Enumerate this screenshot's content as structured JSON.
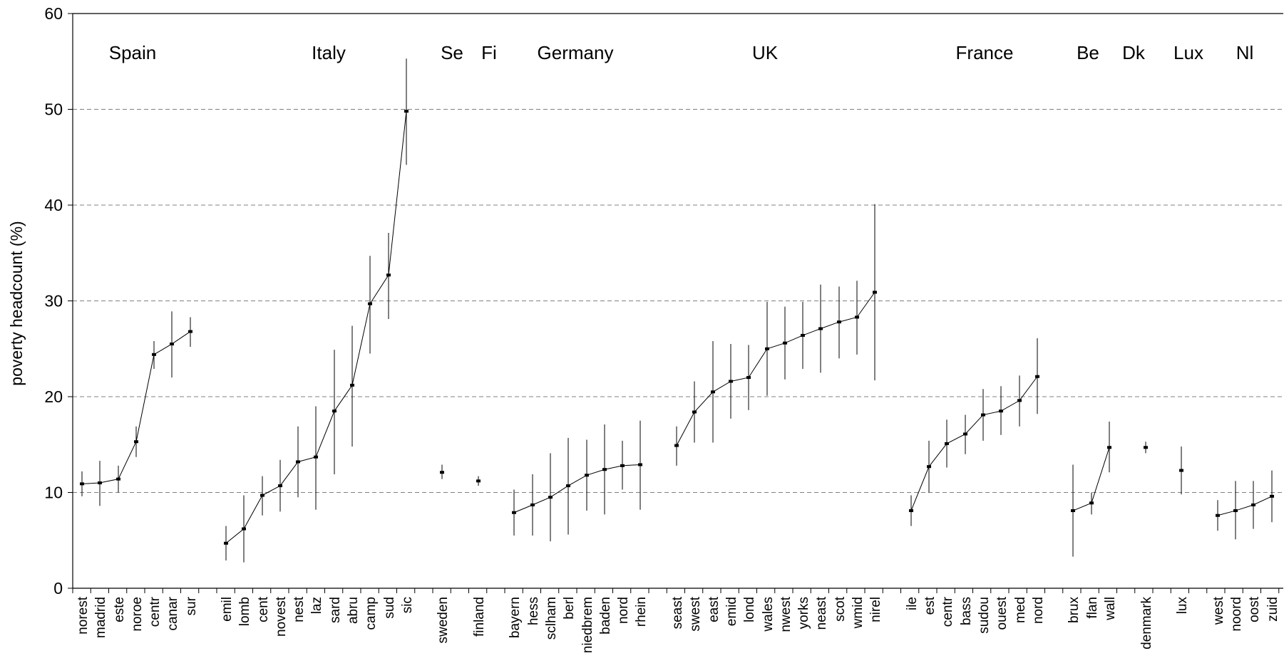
{
  "chart_data": {
    "type": "line",
    "ylabel": "poverty headcount (%)",
    "xlabel": "",
    "ylim": [
      0,
      60
    ],
    "yticks": [
      0,
      10,
      20,
      30,
      40,
      50,
      60
    ],
    "grid": "horizontal dashed",
    "groups": [
      {
        "name": "Spain",
        "categories": [
          "norest",
          "madrid",
          "este",
          "noroe",
          "centr",
          "canar",
          "sur"
        ],
        "values": [
          10.9,
          11.0,
          11.4,
          15.3,
          24.4,
          25.5,
          26.8
        ],
        "lower": [
          9.6,
          8.6,
          10.0,
          13.7,
          22.9,
          22.0,
          25.2
        ],
        "upper": [
          12.2,
          13.3,
          12.8,
          16.9,
          25.8,
          28.9,
          28.3
        ]
      },
      {
        "name": "Italy",
        "categories": [
          "emil",
          "lomb",
          "cent",
          "novest",
          "nest",
          "laz",
          "sard",
          "abru",
          "camp",
          "sud",
          "sic"
        ],
        "values": [
          4.7,
          6.2,
          9.7,
          10.7,
          13.2,
          13.7,
          18.5,
          21.2,
          29.7,
          32.7,
          49.8
        ],
        "lower": [
          2.9,
          2.7,
          7.6,
          8.0,
          9.5,
          8.2,
          11.9,
          14.8,
          24.5,
          28.1,
          44.2
        ],
        "upper": [
          6.5,
          9.7,
          11.7,
          13.4,
          16.9,
          19.0,
          24.9,
          27.4,
          34.7,
          37.1,
          55.3
        ]
      },
      {
        "name": "Se",
        "categories": [
          "sweden"
        ],
        "values": [
          12.1
        ],
        "lower": [
          11.4
        ],
        "upper": [
          12.9
        ]
      },
      {
        "name": "Fi",
        "categories": [
          "finland"
        ],
        "values": [
          11.2
        ],
        "lower": [
          10.7
        ],
        "upper": [
          11.7
        ]
      },
      {
        "name": "Germany",
        "categories": [
          "bayern",
          "hess",
          "sclham",
          "berl",
          "niedbrem",
          "baden",
          "nord",
          "rhein"
        ],
        "values": [
          7.9,
          8.7,
          9.5,
          10.7,
          11.8,
          12.4,
          12.8,
          12.9
        ],
        "lower": [
          5.5,
          5.5,
          4.9,
          5.6,
          8.1,
          7.7,
          10.3,
          8.2
        ],
        "upper": [
          10.3,
          11.9,
          14.1,
          15.7,
          15.5,
          17.1,
          15.4,
          17.5
        ]
      },
      {
        "name": "UK",
        "categories": [
          "seast",
          "swest",
          "east",
          "emid",
          "lond",
          "wales",
          "nwest",
          "yorks",
          "neast",
          "scot",
          "wmid",
          "nirel"
        ],
        "values": [
          14.9,
          18.4,
          20.5,
          21.6,
          22.0,
          25.0,
          25.6,
          26.4,
          27.1,
          27.8,
          28.3,
          30.9
        ],
        "lower": [
          12.8,
          15.2,
          15.2,
          17.7,
          18.6,
          20.1,
          21.8,
          22.9,
          22.5,
          24.0,
          24.4,
          21.7
        ],
        "upper": [
          16.9,
          21.6,
          25.8,
          25.5,
          25.4,
          29.9,
          29.4,
          29.9,
          31.7,
          31.5,
          32.1,
          40.1
        ]
      },
      {
        "name": "France",
        "categories": [
          "ile",
          "est",
          "centr",
          "bass",
          "sudou",
          "ouest",
          "med",
          "nord"
        ],
        "values": [
          8.1,
          12.7,
          15.1,
          16.1,
          18.1,
          18.5,
          19.6,
          22.1
        ],
        "lower": [
          6.5,
          10.0,
          12.6,
          14.0,
          15.4,
          16.0,
          16.9,
          18.2
        ],
        "upper": [
          9.7,
          15.4,
          17.6,
          18.1,
          20.8,
          21.1,
          22.2,
          26.1
        ]
      },
      {
        "name": "Be",
        "categories": [
          "brux",
          "flan",
          "wall"
        ],
        "values": [
          8.1,
          8.9,
          14.7
        ],
        "lower": [
          3.3,
          7.7,
          12.1
        ],
        "upper": [
          12.9,
          10.0,
          17.4
        ]
      },
      {
        "name": "Dk",
        "categories": [
          "denmark"
        ],
        "values": [
          14.7
        ],
        "lower": [
          14.1
        ],
        "upper": [
          15.3
        ]
      },
      {
        "name": "Lux",
        "categories": [
          "lux"
        ],
        "values": [
          12.3
        ],
        "lower": [
          9.8
        ],
        "upper": [
          14.8
        ]
      },
      {
        "name": "Nl",
        "categories": [
          "west",
          "noord",
          "oost",
          "zuid"
        ],
        "values": [
          7.6,
          8.1,
          8.7,
          9.6
        ],
        "lower": [
          6.0,
          5.1,
          6.2,
          6.9
        ],
        "upper": [
          9.2,
          11.2,
          11.2,
          12.3
        ]
      }
    ]
  }
}
